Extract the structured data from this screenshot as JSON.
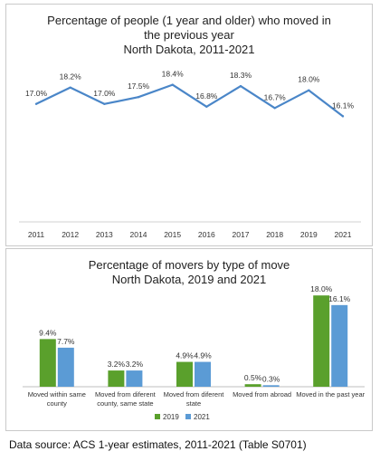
{
  "line_chart": {
    "title_lines": [
      "Percentage of people (1 year and older) who moved in",
      "the previous year",
      "North Dakota, 2011-2021"
    ]
  },
  "bar_chart": {
    "title_lines": [
      "Percentage of movers by type of move",
      "North Dakota, 2019 and 2021"
    ]
  },
  "source": "Data source: ACS 1-year estimates, 2011-2021 (Table S0701)",
  "colors": {
    "line": "#4a86c8",
    "series_2019": "#5aa02c",
    "series_2021": "#5b9bd5"
  },
  "chart_data": [
    {
      "type": "line",
      "title": "Percentage of people (1 year and older) who moved in the previous year North Dakota, 2011-2021",
      "categories": [
        "2011",
        "2012",
        "2013",
        "2014",
        "2015",
        "2016",
        "2017",
        "2018",
        "2019",
        "2021"
      ],
      "values": [
        17.0,
        18.2,
        17.0,
        17.5,
        18.4,
        16.8,
        18.3,
        16.7,
        18.0,
        16.1
      ],
      "data_labels": [
        "17.0%",
        "18.2%",
        "17.0%",
        "17.5%",
        "18.4%",
        "16.8%",
        "18.3%",
        "16.7%",
        "18.0%",
        "16.1%"
      ],
      "xlabel": "",
      "ylabel": "",
      "grid": false
    },
    {
      "type": "bar",
      "title": "Percentage of movers by type of move North Dakota, 2019 and 2021",
      "categories": [
        [
          "Moved within same",
          "county"
        ],
        [
          "Moved from diferent",
          "county, same state"
        ],
        [
          "Moved from diferent",
          "state"
        ],
        [
          "Moved from abroad"
        ],
        [
          "Moved in the past year"
        ]
      ],
      "series": [
        {
          "name": "2019",
          "values": [
            9.4,
            3.2,
            4.9,
            0.5,
            18.0
          ],
          "labels": [
            "9.4%",
            "3.2%",
            "4.9%",
            "0.5%",
            "18.0%"
          ]
        },
        {
          "name": "2021",
          "values": [
            7.7,
            3.2,
            4.9,
            0.3,
            16.1
          ],
          "labels": [
            "7.7%",
            "3.2%",
            "4.9%",
            "0.3%",
            "16.1%"
          ]
        }
      ],
      "legend": "bottom",
      "grid": false
    }
  ]
}
